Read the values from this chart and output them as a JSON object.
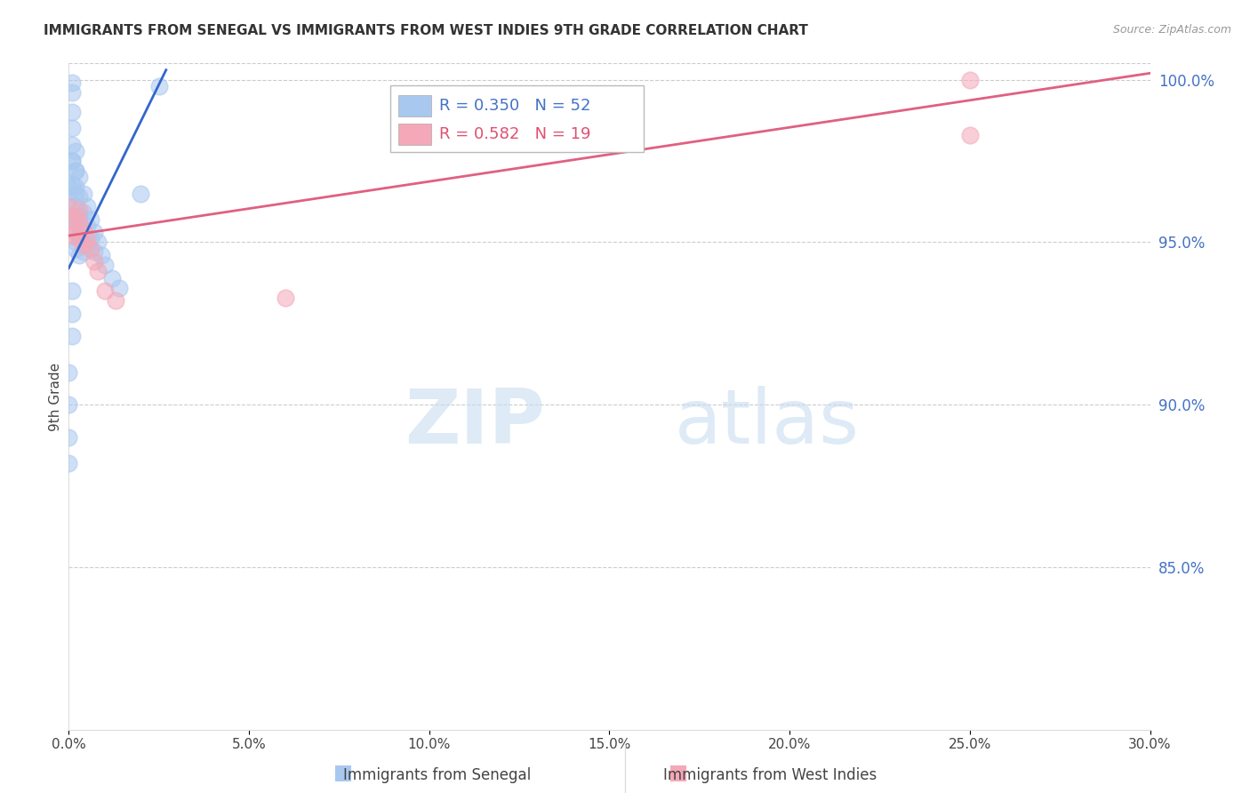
{
  "title": "IMMIGRANTS FROM SENEGAL VS IMMIGRANTS FROM WEST INDIES 9TH GRADE CORRELATION CHART",
  "source": "Source: ZipAtlas.com",
  "ylabel": "9th Grade",
  "legend_label1": "Immigrants from Senegal",
  "legend_label2": "Immigrants from West Indies",
  "R1": 0.35,
  "N1": 52,
  "R2": 0.582,
  "N2": 19,
  "color1": "#A8C8F0",
  "color2": "#F4A8B8",
  "trendline1_color": "#3366CC",
  "trendline2_color": "#E06080",
  "xlim": [
    0.0,
    0.3
  ],
  "ylim": [
    0.8,
    1.005
  ],
  "xticks": [
    0.0,
    0.05,
    0.1,
    0.15,
    0.2,
    0.25,
    0.3
  ],
  "yticks_right": [
    0.85,
    0.9,
    0.95,
    1.0
  ],
  "watermark_zip": "ZIP",
  "watermark_atlas": "atlas",
  "senegal_x": [
    0.0,
    0.0,
    0.0,
    0.001,
    0.001,
    0.001,
    0.001,
    0.001,
    0.001,
    0.002,
    0.002,
    0.002,
    0.002,
    0.002,
    0.002,
    0.003,
    0.003,
    0.003,
    0.003,
    0.003,
    0.004,
    0.004,
    0.004,
    0.004,
    0.005,
    0.005,
    0.005,
    0.006,
    0.006,
    0.007,
    0.007,
    0.008,
    0.009,
    0.01,
    0.012,
    0.014,
    0.02,
    0.025,
    0.001,
    0.001,
    0.002,
    0.002,
    0.003,
    0.001,
    0.002,
    0.001,
    0.001,
    0.001,
    0.0,
    0.0,
    0.0,
    0.0
  ],
  "senegal_y": [
    0.967,
    0.963,
    0.958,
    0.999,
    0.996,
    0.99,
    0.985,
    0.98,
    0.975,
    0.978,
    0.972,
    0.967,
    0.961,
    0.956,
    0.95,
    0.97,
    0.964,
    0.958,
    0.952,
    0.946,
    0.965,
    0.959,
    0.953,
    0.947,
    0.961,
    0.955,
    0.949,
    0.957,
    0.951,
    0.953,
    0.947,
    0.95,
    0.946,
    0.943,
    0.939,
    0.936,
    0.965,
    0.998,
    0.975,
    0.968,
    0.972,
    0.965,
    0.958,
    0.955,
    0.948,
    0.935,
    0.928,
    0.921,
    0.91,
    0.9,
    0.89,
    0.882
  ],
  "westindies_x": [
    0.0,
    0.001,
    0.001,
    0.002,
    0.002,
    0.003,
    0.003,
    0.004,
    0.004,
    0.005,
    0.006,
    0.007,
    0.008,
    0.01,
    0.013,
    0.06,
    0.25,
    0.25,
    0.003
  ],
  "westindies_y": [
    0.961,
    0.957,
    0.952,
    0.958,
    0.953,
    0.956,
    0.951,
    0.954,
    0.949,
    0.951,
    0.948,
    0.944,
    0.941,
    0.935,
    0.932,
    0.933,
    1.0,
    0.983,
    0.96
  ],
  "trendline1_x0": 0.0,
  "trendline1_y0": 0.942,
  "trendline1_x1": 0.027,
  "trendline1_y1": 1.003,
  "trendline2_x0": 0.0,
  "trendline2_y0": 0.952,
  "trendline2_x1": 0.3,
  "trendline2_y1": 1.002
}
